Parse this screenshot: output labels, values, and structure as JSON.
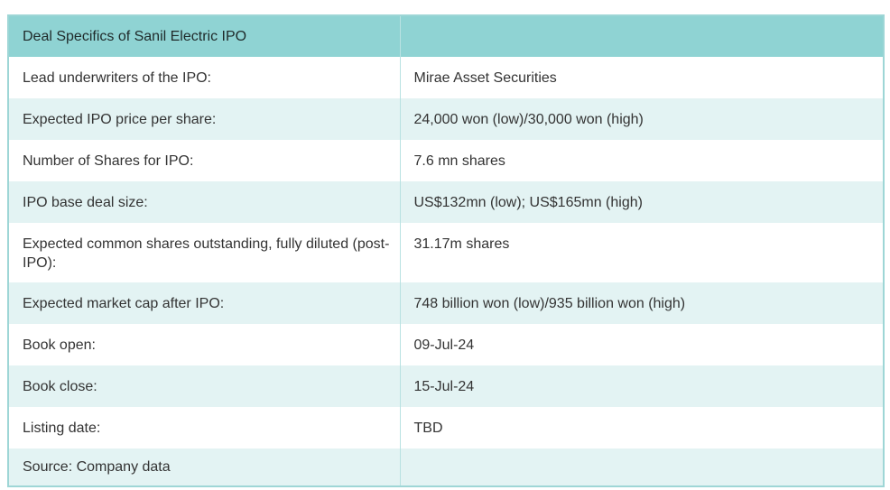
{
  "table": {
    "header": [
      "Deal Specifics of Sanil Electric IPO",
      ""
    ],
    "rows": [
      {
        "label": "Lead underwriters of the IPO:",
        "value": "Mirae Asset Securities"
      },
      {
        "label": "Expected IPO price per share:",
        "value": "24,000 won (low)/30,000 won (high)"
      },
      {
        "label": "Number of Shares for IPO:",
        "value": "7.6 mn shares"
      },
      {
        "label": "IPO base deal size:",
        "value": "US$132mn (low); US$165mn (high)"
      },
      {
        "label": "Expected common shares outstanding, fully diluted (post-IPO):",
        "value": "31.17m shares"
      },
      {
        "label": "Expected market cap after IPO:",
        "value": "748 billion won (low)/935 billion won (high)"
      },
      {
        "label": "Book open:",
        "value": "09-Jul-24"
      },
      {
        "label": "Book close:",
        "value": "15-Jul-24"
      },
      {
        "label": "Listing date:",
        "value": "TBD"
      }
    ],
    "source": "Source: Company data"
  },
  "colors": {
    "header_bg": "#8fd3d3",
    "stripe_bg": "#e3f3f3",
    "border": "#9ed6d6"
  }
}
